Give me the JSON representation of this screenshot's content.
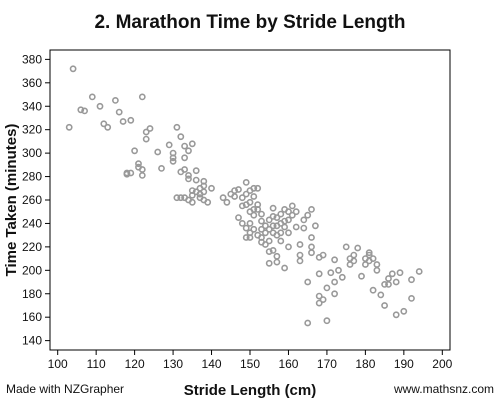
{
  "footer": {
    "credit": "Made with NZGrapher",
    "website": "www.mathsnz.com"
  },
  "chart_data": {
    "type": "scatter",
    "title": "2. Marathon Time by Stride Length",
    "xlabel": "Stride Length (cm)",
    "ylabel": "Time Taken (minutes)",
    "xlim": [
      98,
      202
    ],
    "ylim": [
      132,
      388
    ],
    "xticks": [
      100,
      110,
      120,
      130,
      140,
      150,
      160,
      170,
      180,
      190,
      200
    ],
    "yticks": [
      140,
      160,
      180,
      200,
      220,
      240,
      260,
      280,
      300,
      320,
      340,
      360,
      380
    ],
    "grid": false,
    "legend": "none",
    "marker_color": "#999999",
    "points": [
      [
        103,
        322
      ],
      [
        104,
        372
      ],
      [
        106,
        337
      ],
      [
        107,
        336
      ],
      [
        109,
        348
      ],
      [
        111,
        340
      ],
      [
        112,
        325
      ],
      [
        113,
        322
      ],
      [
        115,
        345
      ],
      [
        116,
        335
      ],
      [
        117,
        327
      ],
      [
        118,
        282
      ],
      [
        118,
        283
      ],
      [
        119,
        328
      ],
      [
        119,
        283
      ],
      [
        120,
        302
      ],
      [
        121,
        291
      ],
      [
        121,
        288
      ],
      [
        122,
        286
      ],
      [
        122,
        281
      ],
      [
        122,
        348
      ],
      [
        123,
        312
      ],
      [
        123,
        318
      ],
      [
        124,
        321
      ],
      [
        126,
        301
      ],
      [
        127,
        287
      ],
      [
        129,
        307
      ],
      [
        130,
        293
      ],
      [
        130,
        296
      ],
      [
        130,
        300
      ],
      [
        131,
        322
      ],
      [
        131,
        262
      ],
      [
        132,
        314
      ],
      [
        132,
        284
      ],
      [
        132,
        262
      ],
      [
        133,
        306
      ],
      [
        133,
        296
      ],
      [
        133,
        286
      ],
      [
        133,
        262
      ],
      [
        134,
        278
      ],
      [
        134,
        281
      ],
      [
        134,
        260
      ],
      [
        134,
        302
      ],
      [
        135,
        308
      ],
      [
        135,
        268
      ],
      [
        135,
        258
      ],
      [
        135,
        264
      ],
      [
        136,
        277
      ],
      [
        136,
        285
      ],
      [
        136,
        267
      ],
      [
        137,
        265
      ],
      [
        137,
        270
      ],
      [
        137,
        262
      ],
      [
        138,
        276
      ],
      [
        138,
        267
      ],
      [
        138,
        272
      ],
      [
        138,
        260
      ],
      [
        139,
        258
      ],
      [
        140,
        270
      ],
      [
        143,
        262
      ],
      [
        144,
        258
      ],
      [
        145,
        265
      ],
      [
        146,
        268
      ],
      [
        146,
        263
      ],
      [
        147,
        245
      ],
      [
        147,
        269
      ],
      [
        148,
        262
      ],
      [
        148,
        255
      ],
      [
        148,
        240
      ],
      [
        149,
        275
      ],
      [
        149,
        265
      ],
      [
        149,
        256
      ],
      [
        149,
        236
      ],
      [
        149,
        228
      ],
      [
        150,
        268
      ],
      [
        150,
        258
      ],
      [
        150,
        250
      ],
      [
        150,
        240
      ],
      [
        150,
        232
      ],
      [
        150,
        228
      ],
      [
        151,
        270
      ],
      [
        151,
        263
      ],
      [
        151,
        252
      ],
      [
        151,
        247
      ],
      [
        151,
        235
      ],
      [
        152,
        270
      ],
      [
        152,
        256
      ],
      [
        152,
        252
      ],
      [
        152,
        230
      ],
      [
        153,
        248
      ],
      [
        153,
        242
      ],
      [
        153,
        235
      ],
      [
        153,
        228
      ],
      [
        153,
        224
      ],
      [
        154,
        238
      ],
      [
        154,
        232
      ],
      [
        154,
        222
      ],
      [
        155,
        243
      ],
      [
        155,
        235
      ],
      [
        155,
        225
      ],
      [
        155,
        216
      ],
      [
        155,
        206
      ],
      [
        156,
        253
      ],
      [
        156,
        246
      ],
      [
        156,
        238
      ],
      [
        156,
        232
      ],
      [
        156,
        217
      ],
      [
        157,
        245
      ],
      [
        157,
        238
      ],
      [
        157,
        230
      ],
      [
        157,
        212
      ],
      [
        157,
        207
      ],
      [
        158,
        248
      ],
      [
        158,
        240
      ],
      [
        158,
        232
      ],
      [
        158,
        225
      ],
      [
        159,
        242
      ],
      [
        159,
        252
      ],
      [
        159,
        237
      ],
      [
        159,
        202
      ],
      [
        160,
        250
      ],
      [
        160,
        243
      ],
      [
        160,
        232
      ],
      [
        160,
        220
      ],
      [
        161,
        255
      ],
      [
        161,
        247
      ],
      [
        162,
        250
      ],
      [
        162,
        237
      ],
      [
        163,
        222
      ],
      [
        163,
        213
      ],
      [
        163,
        208
      ],
      [
        164,
        243
      ],
      [
        164,
        236
      ],
      [
        165,
        247
      ],
      [
        165,
        190
      ],
      [
        165,
        155
      ],
      [
        166,
        252
      ],
      [
        166,
        228
      ],
      [
        166,
        220
      ],
      [
        166,
        215
      ],
      [
        167,
        238
      ],
      [
        168,
        211
      ],
      [
        168,
        197
      ],
      [
        168,
        178
      ],
      [
        168,
        172
      ],
      [
        169,
        213
      ],
      [
        169,
        175
      ],
      [
        170,
        185
      ],
      [
        170,
        157
      ],
      [
        171,
        198
      ],
      [
        172,
        209
      ],
      [
        172,
        190
      ],
      [
        172,
        180
      ],
      [
        173,
        200
      ],
      [
        174,
        194
      ],
      [
        175,
        220
      ],
      [
        176,
        210
      ],
      [
        176,
        205
      ],
      [
        177,
        208
      ],
      [
        177,
        213
      ],
      [
        178,
        219
      ],
      [
        179,
        195
      ],
      [
        180,
        210
      ],
      [
        180,
        205
      ],
      [
        181,
        215
      ],
      [
        181,
        213
      ],
      [
        181,
        208
      ],
      [
        182,
        183
      ],
      [
        182,
        210
      ],
      [
        183,
        205
      ],
      [
        183,
        200
      ],
      [
        184,
        179
      ],
      [
        185,
        188
      ],
      [
        185,
        170
      ],
      [
        186,
        193
      ],
      [
        186,
        188
      ],
      [
        187,
        197
      ],
      [
        188,
        190
      ],
      [
        188,
        162
      ],
      [
        189,
        198
      ],
      [
        190,
        165
      ],
      [
        192,
        176
      ],
      [
        192,
        192
      ],
      [
        194,
        199
      ]
    ]
  }
}
